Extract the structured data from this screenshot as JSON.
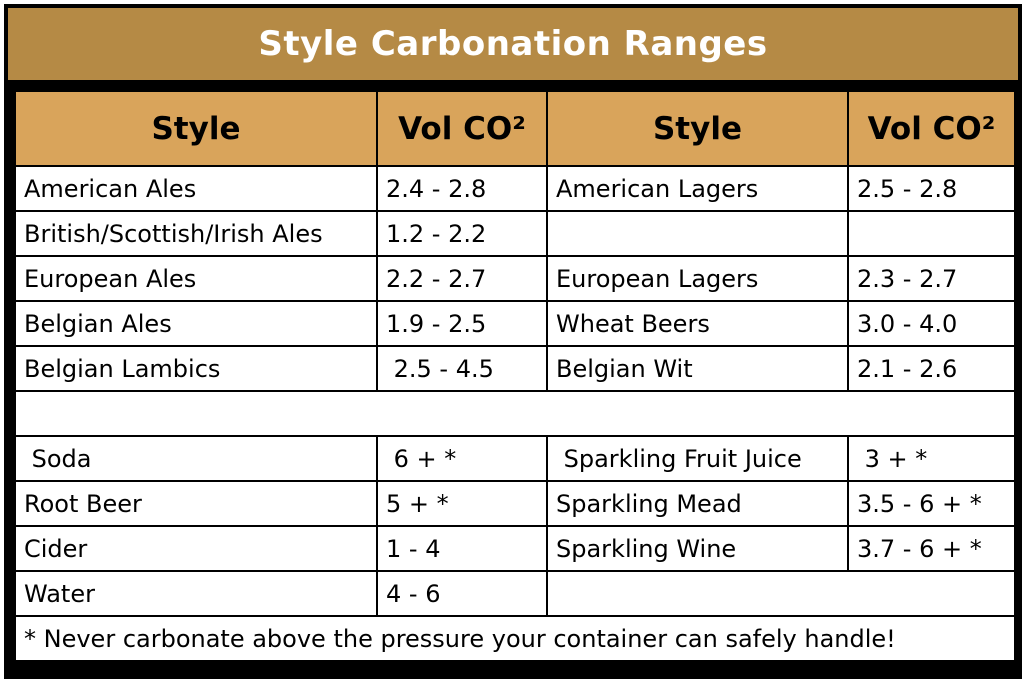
{
  "title": "Style Carbonation Ranges",
  "headers": {
    "style_left": "Style",
    "vol_left": "Vol CO²",
    "style_right": "Style",
    "vol_right": "Vol CO²"
  },
  "rows": [
    {
      "style_left": "American Ales",
      "vol_left": "2.4 - 2.8",
      "style_right": "American Lagers",
      "vol_right": "2.5 - 2.8"
    },
    {
      "style_left": "British/Scottish/Irish Ales",
      "vol_left": "1.2 - 2.2",
      "style_right": "",
      "vol_right": ""
    },
    {
      "style_left": "European Ales",
      "vol_left": "2.2 - 2.7",
      "style_right": "European Lagers",
      "vol_right": "2.3 - 2.7"
    },
    {
      "style_left": "Belgian Ales",
      "vol_left": "1.9 - 2.5",
      "style_right": "Wheat Beers",
      "vol_right": "3.0 - 4.0"
    },
    {
      "style_left": "Belgian Lambics",
      "vol_left": " 2.5 - 4.5",
      "style_right": "Belgian Wit",
      "vol_right": "2.1 - 2.6"
    }
  ],
  "other_rows": [
    {
      "style_left": " Soda",
      "vol_left": " 6 + *",
      "style_right": " Sparkling Fruit Juice",
      "vol_right": " 3 + *"
    },
    {
      "style_left": "Root Beer",
      "vol_left": "5 + *",
      "style_right": "Sparkling Mead",
      "vol_right": "3.5 - 6 + *"
    },
    {
      "style_left": "Cider",
      "vol_left": "1 - 4",
      "style_right": "Sparkling Wine",
      "vol_right": "3.7 - 6 + *"
    },
    {
      "style_left": "Water",
      "vol_left": "4 - 6",
      "style_right": "",
      "vol_right": ""
    }
  ],
  "footnote": "* Never carbonate above the pressure your container can safely handle!",
  "colors": {
    "title_bg": "#b58a45",
    "header_bg": "#d9a45b",
    "border": "#000000",
    "title_text": "#ffffff"
  }
}
